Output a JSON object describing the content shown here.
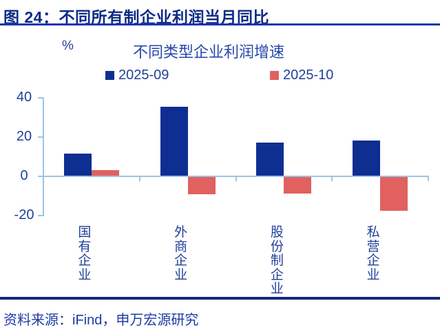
{
  "header": {
    "title": "图 24：不同所有制企业利润当月同比"
  },
  "chart": {
    "unit_label": "%"
  },
  "chart_data": {
    "type": "bar",
    "title": "不同类型企业利润增速",
    "categories": [
      "国有企业",
      "外商企业",
      "股份制企业",
      "私营企业"
    ],
    "series": [
      {
        "name": "2025-09",
        "color": "#0e2e92",
        "values": [
          11.6,
          35.6,
          17.2,
          18.2
        ]
      },
      {
        "name": "2025-10",
        "color": "#e0615f",
        "values": [
          3.1,
          -9.1,
          -8.8,
          -17.5
        ]
      }
    ],
    "xlabel": "",
    "ylabel": "%",
    "yticks": [
      40,
      20,
      0,
      -20
    ],
    "ylim": [
      -20,
      40
    ],
    "legend_position": "top",
    "grid": false
  },
  "footer": {
    "source": "资料来源：iFind，申万宏源研究"
  },
  "colors": {
    "header_text": "#0d2b86",
    "header_rule": "#1d35ae",
    "chart_text": "#21409a",
    "axis": "#9dc3e6",
    "bar_2025_09": "#0e2e92",
    "bar_2025_10": "#e0615f",
    "footer_rule": "#15277d",
    "source_text": "#1e3ba4"
  }
}
